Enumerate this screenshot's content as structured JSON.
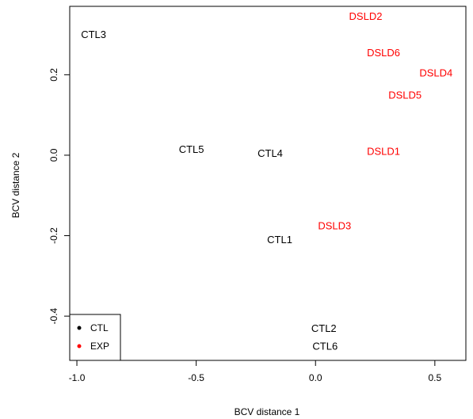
{
  "chart_data": {
    "type": "scatter",
    "title": "",
    "xlabel": "BCV distance 1",
    "ylabel": "BCV distance 2",
    "xlim": [
      -1.03,
      0.63
    ],
    "ylim": [
      -0.51,
      0.37
    ],
    "xticks": [
      {
        "value": -1.0,
        "label": "-1.0"
      },
      {
        "value": -0.5,
        "label": "-0.5"
      },
      {
        "value": 0.0,
        "label": "0.0"
      },
      {
        "value": 0.5,
        "label": "0.5"
      }
    ],
    "yticks": [
      {
        "value": -0.4,
        "label": "-0.4"
      },
      {
        "value": -0.2,
        "label": "-0.2"
      },
      {
        "value": 0.0,
        "label": "0.0"
      },
      {
        "value": 0.2,
        "label": "0.2"
      }
    ],
    "grid": false,
    "legend_position": "bottom-left",
    "series": [
      {
        "name": "CTL",
        "color": "#000000",
        "points": [
          {
            "label": "CTL3",
            "x": -0.93,
            "y": 0.3
          },
          {
            "label": "CTL5",
            "x": -0.52,
            "y": 0.015
          },
          {
            "label": "CTL4",
            "x": -0.19,
            "y": 0.005
          },
          {
            "label": "CTL1",
            "x": -0.15,
            "y": -0.21
          },
          {
            "label": "CTL2",
            "x": 0.035,
            "y": -0.43
          },
          {
            "label": "CTL6",
            "x": 0.04,
            "y": -0.475
          }
        ]
      },
      {
        "name": "EXP",
        "color": "#ff0000",
        "points": [
          {
            "label": "DSLD2",
            "x": 0.21,
            "y": 0.345
          },
          {
            "label": "DSLD6",
            "x": 0.285,
            "y": 0.255
          },
          {
            "label": "DSLD4",
            "x": 0.505,
            "y": 0.205
          },
          {
            "label": "DSLD5",
            "x": 0.375,
            "y": 0.15
          },
          {
            "label": "DSLD1",
            "x": 0.285,
            "y": 0.01
          },
          {
            "label": "DSLD3",
            "x": 0.08,
            "y": -0.175
          }
        ]
      }
    ]
  }
}
